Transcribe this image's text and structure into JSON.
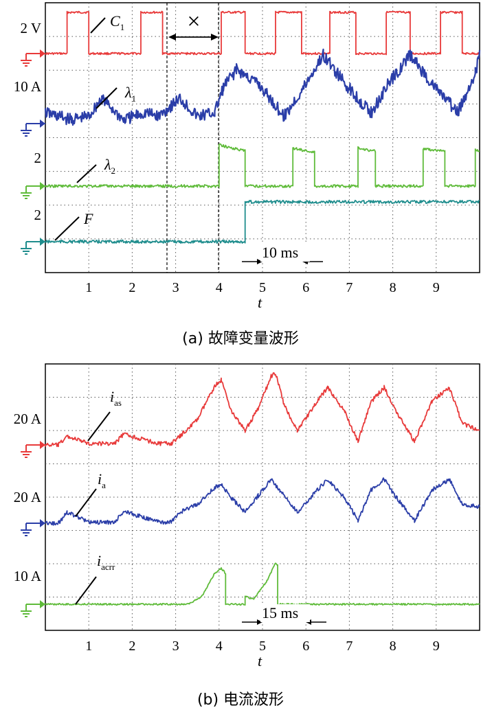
{
  "chart_data": [
    {
      "type": "line",
      "caption": "(a) 故障变量波形",
      "xlabel": "t",
      "x_ticks": [
        "1",
        "2",
        "3",
        "4",
        "5",
        "6",
        "7",
        "8",
        "9"
      ],
      "xlim": [
        0,
        10
      ],
      "time_annotation": "10 ms",
      "fault_marker": "×",
      "series": [
        {
          "name": "C",
          "sub": "1",
          "scale": "2 V",
          "color": "#e83a3a",
          "samples": {
            "x": [
              0,
              0.5,
              0.5,
              1.0,
              1.0,
              2.2,
              2.2,
              2.7,
              2.7,
              4.05,
              4.05,
              4.6,
              4.6,
              5.3,
              5.3,
              5.9,
              5.9,
              6.55,
              6.55,
              7.15,
              7.15,
              7.85,
              7.85,
              8.4,
              8.4,
              9.1,
              9.1,
              9.6,
              9.6,
              10
            ],
            "y": [
              0,
              0,
              1,
              1,
              0,
              0,
              1,
              1,
              0,
              0,
              1,
              1,
              0,
              0,
              1,
              1,
              0,
              0,
              1,
              1,
              0,
              0,
              1,
              1,
              0,
              0,
              1,
              1,
              0,
              0
            ]
          }
        },
        {
          "name": "λ",
          "sub": "1",
          "scale": "10 A",
          "color": "#2b3ea8",
          "samples": {
            "x": [
              0,
              0.6,
              1.0,
              1.3,
              1.8,
              2.3,
              2.6,
              3.1,
              3.5,
              3.9,
              4.1,
              4.4,
              4.9,
              5.5,
              5.9,
              6.4,
              6.9,
              7.5,
              7.9,
              8.4,
              8.9,
              9.5,
              9.9,
              10
            ],
            "y": [
              0.15,
              0.05,
              0.1,
              0.35,
              0.05,
              0.15,
              0.1,
              0.35,
              0.1,
              0.15,
              0.5,
              0.75,
              0.55,
              0.1,
              0.45,
              0.95,
              0.55,
              0.15,
              0.55,
              0.95,
              0.55,
              0.15,
              0.7,
              0.95
            ]
          }
        },
        {
          "name": "λ",
          "sub": "2",
          "scale": "2",
          "color": "#5fbb3a",
          "samples": {
            "x": [
              0,
              4.0,
              4.0,
              4.6,
              4.6,
              5.7,
              5.7,
              6.2,
              6.2,
              7.2,
              7.2,
              7.6,
              7.6,
              8.7,
              8.7,
              9.2,
              9.2,
              9.9,
              9.9,
              10
            ],
            "y": [
              0,
              0,
              1,
              0.85,
              0,
              0,
              0.92,
              0.82,
              0,
              0,
              0.92,
              0.85,
              0,
              0,
              0.9,
              0.85,
              0,
              0,
              0.9,
              0.85
            ]
          }
        },
        {
          "name": "F",
          "sub": "",
          "scale": "2",
          "color": "#1f8d8d",
          "samples": {
            "x": [
              0,
              4.6,
              4.6,
              10
            ],
            "y": [
              0,
              0,
              1,
              1
            ]
          }
        }
      ]
    },
    {
      "type": "line",
      "caption": "(b) 电流波形",
      "xlabel": "t",
      "x_ticks": [
        "1",
        "2",
        "3",
        "4",
        "5",
        "6",
        "7",
        "8",
        "9"
      ],
      "xlim": [
        0,
        10
      ],
      "time_annotation": "15 ms",
      "series": [
        {
          "name": "i",
          "sub": "as",
          "scale": "20 A",
          "color": "#e83a3a",
          "samples": {
            "x": [
              0,
              0.3,
              0.5,
              1.0,
              1.6,
              1.8,
              2.6,
              2.9,
              3.1,
              3.5,
              3.9,
              4.05,
              4.3,
              4.6,
              4.9,
              5.2,
              5.3,
              5.5,
              5.8,
              6.2,
              6.5,
              6.9,
              7.2,
              7.5,
              7.8,
              8.1,
              8.5,
              8.9,
              9.3,
              9.6,
              10
            ],
            "y": [
              0,
              0,
              0.12,
              0.02,
              0.02,
              0.15,
              0.02,
              0.02,
              0.12,
              0.35,
              0.82,
              0.9,
              0.45,
              0.2,
              0.5,
              0.95,
              1.0,
              0.55,
              0.2,
              0.55,
              0.8,
              0.45,
              0.05,
              0.6,
              0.8,
              0.45,
              0.05,
              0.6,
              0.8,
              0.3,
              0.2
            ]
          }
        },
        {
          "name": "i",
          "sub": "a",
          "scale": "20 A",
          "color": "#2b3ea8",
          "samples": {
            "x": [
              0,
              0.3,
              0.5,
              1.0,
              1.6,
              1.8,
              2.6,
              2.9,
              3.1,
              3.5,
              3.9,
              4.05,
              4.3,
              4.6,
              4.9,
              5.2,
              5.4,
              5.8,
              6.2,
              6.5,
              6.9,
              7.2,
              7.5,
              7.8,
              8.1,
              8.5,
              8.9,
              9.3,
              9.6,
              10
            ],
            "y": [
              0,
              0,
              0.2,
              0.02,
              0.02,
              0.22,
              0.02,
              0.02,
              0.2,
              0.35,
              0.65,
              0.7,
              0.45,
              0.2,
              0.5,
              0.8,
              0.6,
              0.2,
              0.55,
              0.8,
              0.45,
              0.05,
              0.6,
              0.8,
              0.45,
              0.05,
              0.6,
              0.8,
              0.35,
              0.3
            ]
          }
        },
        {
          "name": "i",
          "sub": "acrr",
          "scale": "10 A",
          "color": "#5fbb3a",
          "samples": {
            "x": [
              0,
              3.3,
              3.6,
              3.9,
              4.05,
              4.15,
              4.15,
              4.6,
              4.6,
              4.8,
              5.1,
              5.3,
              5.35,
              5.35,
              6.0,
              10
            ],
            "y": [
              0,
              0,
              0.15,
              0.6,
              0.7,
              0.6,
              0,
              0,
              0.15,
              0.1,
              0.45,
              0.8,
              0.75,
              0,
              0,
              0
            ]
          }
        }
      ]
    }
  ]
}
